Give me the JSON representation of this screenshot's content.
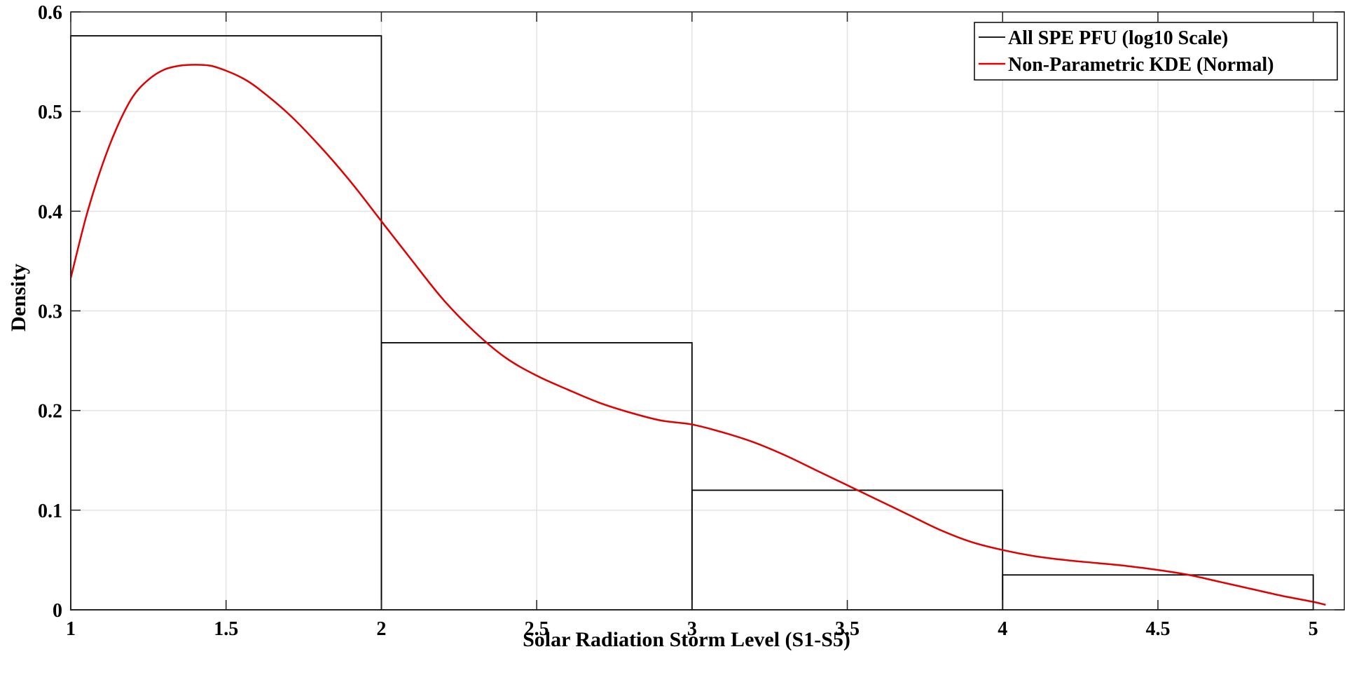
{
  "chart_data": {
    "type": "bar",
    "xlabel": "Solar Radiation Storm Level (S1-S5)",
    "ylabel": "Density",
    "xlim": [
      1,
      5.1
    ],
    "ylim": [
      0,
      0.6
    ],
    "xticks": [
      1,
      1.5,
      2,
      2.5,
      3,
      3.5,
      4,
      4.5,
      5
    ],
    "xtick_labels": [
      "1",
      "1.5",
      "2",
      "2.5",
      "3",
      "3.5",
      "4",
      "4.5",
      "5"
    ],
    "yticks": [
      0,
      0.1,
      0.2,
      0.3,
      0.4,
      0.5,
      0.6
    ],
    "ytick_labels": [
      "0",
      "0.1",
      "0.2",
      "0.3",
      "0.4",
      "0.5",
      "0.6"
    ],
    "grid": true,
    "legend_position": "top-right",
    "histogram": {
      "name": "All SPE PFU (log10 Scale)",
      "color": "#000000",
      "bins": [
        {
          "x0": 1,
          "x1": 2,
          "value": 0.576
        },
        {
          "x0": 2,
          "x1": 3,
          "value": 0.268
        },
        {
          "x0": 3,
          "x1": 4,
          "value": 0.12
        },
        {
          "x0": 4,
          "x1": 5,
          "value": 0.035
        }
      ]
    },
    "series": [
      {
        "name": "Non-Parametric KDE (Normal)",
        "type": "line",
        "color": "#e00000",
        "x": [
          1.0,
          1.05,
          1.1,
          1.15,
          1.2,
          1.25,
          1.3,
          1.35,
          1.4,
          1.45,
          1.5,
          1.55,
          1.6,
          1.7,
          1.8,
          1.9,
          2.0,
          2.1,
          2.2,
          2.3,
          2.4,
          2.5,
          2.6,
          2.7,
          2.8,
          2.9,
          3.0,
          3.1,
          3.2,
          3.3,
          3.4,
          3.5,
          3.6,
          3.7,
          3.8,
          3.9,
          4.0,
          4.1,
          4.2,
          4.3,
          4.4,
          4.5,
          4.6,
          4.7,
          4.8,
          4.9,
          5.0,
          5.04
        ],
        "y": [
          0.333,
          0.395,
          0.445,
          0.485,
          0.515,
          0.532,
          0.542,
          0.546,
          0.547,
          0.546,
          0.541,
          0.534,
          0.524,
          0.498,
          0.466,
          0.43,
          0.39,
          0.35,
          0.311,
          0.279,
          0.253,
          0.235,
          0.221,
          0.208,
          0.198,
          0.19,
          0.186,
          0.178,
          0.168,
          0.155,
          0.14,
          0.125,
          0.11,
          0.095,
          0.08,
          0.068,
          0.06,
          0.054,
          0.05,
          0.047,
          0.044,
          0.04,
          0.035,
          0.028,
          0.021,
          0.014,
          0.008,
          0.005
        ]
      }
    ]
  }
}
